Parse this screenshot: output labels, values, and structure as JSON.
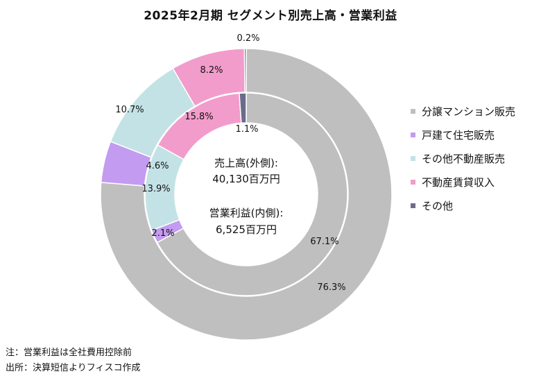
{
  "chart_data": {
    "type": "pie",
    "title": "2025年2月期 セグメント別売上高・営業利益",
    "categories": [
      "分譲マンション販売",
      "戸建て住宅販売",
      "その他不動産販売",
      "不動産賃貸収入",
      "その他"
    ],
    "colors": [
      "#bfbfbf",
      "#c39bf0",
      "#c3e2e6",
      "#f29ccb",
      "#6b6b8c"
    ],
    "series": [
      {
        "name": "売上高(外側)",
        "values": [
          76.3,
          4.6,
          10.7,
          8.2,
          0.2
        ],
        "labels": [
          "76.3%",
          "4.6%",
          "10.7%",
          "8.2%",
          "0.2%"
        ]
      },
      {
        "name": "営業利益(内側)",
        "values": [
          67.1,
          2.1,
          13.9,
          15.8,
          1.1
        ],
        "labels": [
          "67.1%",
          "2.1%",
          "13.9%",
          "15.8%",
          "1.1%"
        ]
      }
    ],
    "center": {
      "sales_label": "売上高(外側):",
      "sales_value": "40,130百万円",
      "profit_label": "営業利益(内側):",
      "profit_value": "6,525百万円"
    },
    "legend_position": "right"
  },
  "notes": [
    "注：営業利益は全社費用控除前",
    "出所：決算短信よりフィスコ作成"
  ]
}
